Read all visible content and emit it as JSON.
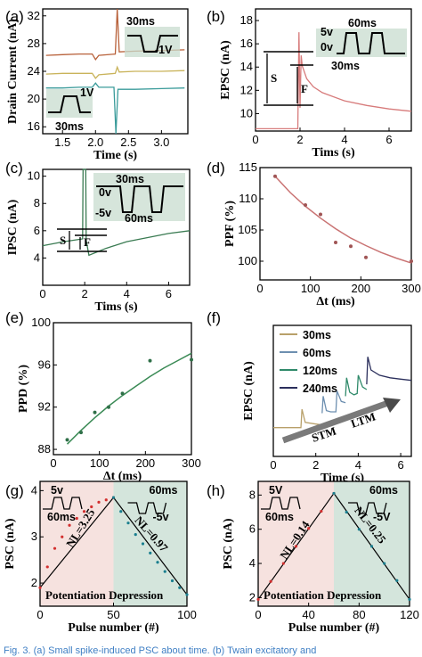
{
  "caption": "Fig. 3. (a) Small spike-induced PSC about time. (b) Twain excitatory and",
  "panels": [
    {
      "id": "a",
      "label": "(a)",
      "xlabel": "Time (s)",
      "ylabel": "Drain Current (nA)",
      "xticks": [
        "1.5",
        "2.0",
        "2.5",
        "3.0"
      ],
      "yticks": [
        "16",
        "20",
        "24",
        "28",
        "32"
      ],
      "inset_top": {
        "time": "30ms",
        "amp": "-1V"
      },
      "inset_bottom": {
        "time": "30ms",
        "amp": "1V"
      }
    },
    {
      "id": "b",
      "label": "(b)",
      "xlabel": "Tims (s)",
      "ylabel": "EPSC (nA)",
      "xticks": [
        "0",
        "2",
        "4",
        "6"
      ],
      "yticks": [
        "10",
        "12",
        "14",
        "16",
        "18"
      ],
      "inset": {
        "period": "60ms",
        "v_high": "5v",
        "v_low": "0v",
        "width": "30ms"
      },
      "marks": {
        "S": "S",
        "F": "F"
      }
    },
    {
      "id": "c",
      "label": "(c)",
      "xlabel": "Tims (s)",
      "ylabel": "IPSC (nA)",
      "xticks": [
        "0",
        "2",
        "4",
        "6"
      ],
      "yticks": [
        "4",
        "6",
        "8",
        "10"
      ],
      "inset": {
        "width": "30ms",
        "v_high": "0v",
        "v_low": "-5v",
        "period": "60ms"
      },
      "marks": {
        "S": "S",
        "F": "F"
      }
    },
    {
      "id": "d",
      "label": "(d)",
      "xlabel": "Δt (ms)",
      "ylabel": "PPF (%)",
      "xticks": [
        "0",
        "100",
        "200",
        "300"
      ],
      "yticks": [
        "100",
        "105",
        "110",
        "115"
      ]
    },
    {
      "id": "e",
      "label": "(e)",
      "xlabel": "Δt (ms)",
      "ylabel": "PPD (%)",
      "xticks": [
        "0",
        "100",
        "200",
        "300"
      ],
      "yticks": [
        "88",
        "92",
        "96",
        "100"
      ]
    },
    {
      "id": "f",
      "label": "(f)",
      "xlabel": "Time (s)",
      "ylabel": "EPSC (nA)",
      "xticks": [
        "0",
        "2",
        "4",
        "6"
      ],
      "legend": [
        "30ms",
        "60ms",
        "120ms",
        "240ms"
      ],
      "stm": "STM",
      "ltm": "LTM"
    },
    {
      "id": "g",
      "label": "(g)",
      "xlabel": "Pulse number (#)",
      "ylabel": "PSC (nA)",
      "xticks": [
        "0",
        "50",
        "100"
      ],
      "yticks": [
        "2",
        "3",
        "4"
      ],
      "insets": {
        "left_v": "5v",
        "left_t": "60ms",
        "right_t": "60ms",
        "right_v": "-5v"
      },
      "nl_left": "NL=3.25",
      "nl_right": "NL=0.97",
      "phases": "Potentiation Depression"
    },
    {
      "id": "h",
      "label": "(h)",
      "xlabel": "Pulse number (#)",
      "ylabel": "PSC (nA)",
      "xticks": [
        "0",
        "40",
        "80",
        "120"
      ],
      "yticks": [
        "2",
        "4",
        "6",
        "8"
      ],
      "insets": {
        "left_v": "5V",
        "left_t": "60ms",
        "right_t": "60ms",
        "right_v": "-5V"
      },
      "nl_left": "NL=0.14",
      "nl_right": "NL=0.25",
      "phases": "Potentiation Depression"
    }
  ],
  "chart_data": [
    {
      "panel": "a",
      "type": "line",
      "xlim": [
        1.2,
        3.4
      ],
      "ylim": [
        15,
        33
      ],
      "series": [
        {
          "color": "#b8613a",
          "x": [
            1.25,
            1.5,
            1.75,
            1.95,
            2.0,
            2.05,
            2.3,
            2.33,
            2.36,
            2.6,
            3.0,
            3.35
          ],
          "y": [
            26.3,
            26.4,
            26.5,
            26.5,
            25.7,
            26.3,
            26.5,
            33,
            26.8,
            26.9,
            27.0,
            27.1
          ]
        },
        {
          "color": "#c9b35a",
          "x": [
            1.25,
            1.5,
            1.75,
            1.95,
            2.0,
            2.05,
            2.3,
            2.33,
            2.36,
            2.6,
            3.0,
            3.35
          ],
          "y": [
            23.6,
            23.7,
            23.7,
            23.7,
            23.0,
            23.5,
            23.7,
            24.6,
            23.9,
            24.0,
            24.0,
            24.1
          ]
        },
        {
          "color": "#3a9b9a",
          "x": [
            1.25,
            1.5,
            1.75,
            1.95,
            2.0,
            2.05,
            2.28,
            2.31,
            2.34,
            2.6,
            3.0,
            3.35
          ],
          "y": [
            21.6,
            21.6,
            21.7,
            21.7,
            22.3,
            21.7,
            21.7,
            15.0,
            21.4,
            21.4,
            21.5,
            21.6
          ]
        }
      ]
    },
    {
      "panel": "b",
      "type": "line",
      "xlim": [
        0,
        7
      ],
      "ylim": [
        8.5,
        19
      ],
      "series": [
        {
          "color": "#d77b7b",
          "x": [
            0,
            1.9,
            1.95,
            2.0,
            2.05,
            2.1,
            2.3,
            2.6,
            3,
            4,
            5,
            6,
            7
          ],
          "y": [
            8.7,
            8.7,
            17.0,
            10.5,
            15.0,
            14.1,
            13.0,
            12.3,
            11.8,
            11.1,
            10.7,
            10.4,
            10.2
          ]
        }
      ]
    },
    {
      "panel": "c",
      "type": "line",
      "xlim": [
        0,
        7
      ],
      "ylim": [
        2,
        10.5
      ],
      "series": [
        {
          "color": "#3a7b52",
          "x": [
            0,
            1,
            1.9,
            1.92,
            2.05,
            2.07,
            2.2,
            3,
            4,
            5,
            6,
            7
          ],
          "y": [
            4.9,
            5.2,
            5.4,
            10.5,
            10.5,
            5.3,
            4.2,
            4.7,
            5.2,
            5.5,
            5.8,
            6.0
          ]
        }
      ]
    },
    {
      "panel": "d",
      "type": "scatter",
      "xlim": [
        0,
        300
      ],
      "ylim": [
        97,
        115
      ],
      "x": [
        30,
        90,
        120,
        150,
        180,
        210,
        300
      ],
      "y": [
        113.6,
        109.0,
        107.5,
        103.0,
        102.4,
        100.6,
        100.0
      ],
      "fit": {
        "color": "#c97373",
        "x": [
          30,
          60,
          90,
          120,
          150,
          180,
          210,
          240,
          270,
          300
        ],
        "y": [
          113.6,
          111.0,
          108.8,
          106.9,
          105.2,
          103.7,
          102.5,
          101.4,
          100.5,
          99.7
        ]
      }
    },
    {
      "panel": "e",
      "type": "scatter",
      "xlim": [
        0,
        300
      ],
      "ylim": [
        87.5,
        100
      ],
      "x": [
        30,
        60,
        90,
        120,
        150,
        210,
        300
      ],
      "y": [
        88.9,
        89.6,
        91.5,
        92.0,
        93.3,
        96.4,
        96.5
      ],
      "fit": {
        "color": "#3a8a55",
        "x": [
          30,
          60,
          90,
          120,
          150,
          180,
          210,
          240,
          270,
          300
        ],
        "y": [
          88.5,
          89.8,
          91.0,
          92.1,
          93.1,
          94.0,
          94.9,
          95.7,
          96.4,
          97.1
        ]
      }
    },
    {
      "panel": "f",
      "type": "line",
      "xlim": [
        0,
        6.5
      ],
      "ylim": [
        0,
        1
      ],
      "series": [
        {
          "name": "30ms",
          "color": "#b8a06a",
          "x": [
            0,
            1.3,
            1.35,
            1.5,
            1.9,
            2.3
          ],
          "y": [
            0.22,
            0.22,
            0.36,
            0.26,
            0.25,
            0.24
          ]
        },
        {
          "name": "60ms",
          "color": "#6d8fb0",
          "x": [
            2.3,
            2.35,
            2.5,
            2.7,
            2.95,
            3.0,
            3.2,
            3.4
          ],
          "y": [
            0.33,
            0.46,
            0.35,
            0.34,
            0.34,
            0.5,
            0.42,
            0.41
          ]
        },
        {
          "name": "120ms",
          "color": "#2f8a6a",
          "x": [
            3.4,
            3.45,
            3.6,
            3.8,
            3.95,
            4.0,
            4.2,
            4.4
          ],
          "y": [
            0.46,
            0.6,
            0.49,
            0.47,
            0.48,
            0.62,
            0.53,
            0.51
          ]
        },
        {
          "name": "240ms",
          "color": "#2b2f5c",
          "x": [
            4.4,
            4.45,
            4.6,
            5.0,
            5.5,
            6.0,
            6.5
          ],
          "y": [
            0.55,
            0.76,
            0.66,
            0.62,
            0.6,
            0.59,
            0.58
          ]
        }
      ]
    },
    {
      "panel": "g",
      "type": "scatter",
      "xlim": [
        0,
        100
      ],
      "ylim": [
        1.5,
        4.2
      ],
      "split": 50,
      "potentiation": {
        "color": "#d32f2f",
        "x": [
          0,
          5,
          10,
          15,
          20,
          25,
          30,
          35,
          40,
          45,
          50
        ],
        "y": [
          1.9,
          2.35,
          2.75,
          3.0,
          3.25,
          3.4,
          3.55,
          3.65,
          3.75,
          3.8,
          3.85
        ]
      },
      "depression": {
        "color": "#1a7f8f",
        "x": [
          50,
          55,
          60,
          65,
          70,
          75,
          80,
          85,
          90,
          95,
          100
        ],
        "y": [
          3.85,
          3.55,
          3.3,
          3.05,
          2.85,
          2.65,
          2.45,
          2.25,
          2.05,
          1.9,
          1.75
        ]
      }
    },
    {
      "panel": "h",
      "type": "scatter",
      "xlim": [
        0,
        120
      ],
      "ylim": [
        1.5,
        8.8
      ],
      "split": 60,
      "potentiation": {
        "color": "#d32f2f",
        "x": [
          0,
          10,
          20,
          30,
          40,
          50,
          60
        ],
        "y": [
          1.9,
          2.95,
          4.0,
          5.0,
          6.05,
          7.05,
          8.1
        ]
      },
      "depression": {
        "color": "#1a7f8f",
        "x": [
          60,
          70,
          80,
          90,
          100,
          110,
          120
        ],
        "y": [
          8.1,
          7.0,
          6.0,
          5.0,
          4.0,
          3.0,
          1.9
        ]
      }
    }
  ]
}
